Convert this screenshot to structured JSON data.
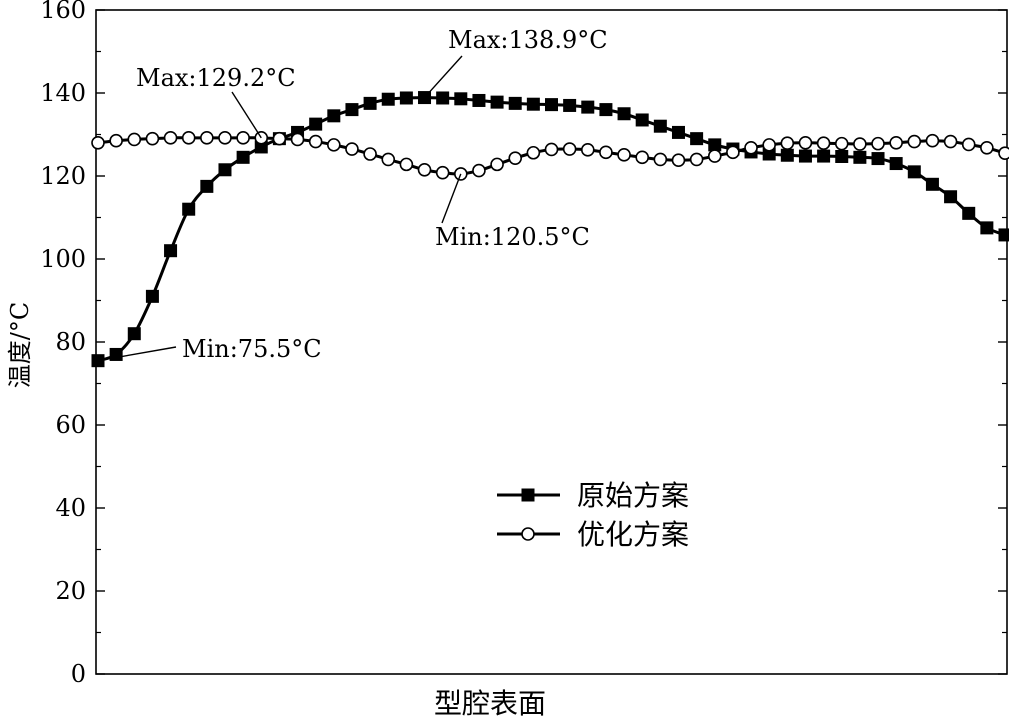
{
  "chart_data": {
    "type": "line",
    "title": "",
    "xlabel": "型腔表面",
    "ylabel": "温度/°C",
    "ylim": [
      0,
      160
    ],
    "yticks": [
      0,
      20,
      40,
      60,
      80,
      100,
      120,
      140,
      160
    ],
    "grid": false,
    "legend_position": "center-right",
    "series": [
      {
        "name": "原始方案",
        "marker": "square",
        "color": "#000000",
        "values": [
          75.5,
          77.0,
          82.0,
          91.0,
          102.0,
          112.0,
          117.5,
          121.5,
          124.5,
          127.0,
          129.0,
          130.5,
          132.5,
          134.5,
          136.0,
          137.5,
          138.5,
          138.8,
          138.9,
          138.8,
          138.6,
          138.2,
          137.8,
          137.5,
          137.3,
          137.2,
          137.0,
          136.6,
          136.0,
          135.0,
          133.5,
          132.0,
          130.5,
          129.0,
          127.5,
          126.5,
          125.8,
          125.3,
          125.0,
          124.8,
          124.8,
          124.7,
          124.5,
          124.2,
          123.0,
          121.0,
          118.0,
          115.0,
          111.0,
          107.5,
          105.8
        ],
        "annotations": [
          {
            "text": "Min:75.5°C",
            "x_index": 0,
            "value": 75.5
          },
          {
            "text": "Max:138.9°C",
            "x_index": 18,
            "value": 138.9
          }
        ]
      },
      {
        "name": "优化方案",
        "marker": "circle",
        "color": "#000000",
        "values": [
          128.0,
          128.5,
          128.8,
          129.0,
          129.2,
          129.2,
          129.2,
          129.2,
          129.2,
          129.2,
          129.0,
          128.8,
          128.3,
          127.5,
          126.5,
          125.3,
          124.0,
          122.8,
          121.5,
          120.8,
          120.5,
          121.3,
          122.8,
          124.3,
          125.6,
          126.4,
          126.5,
          126.3,
          125.7,
          125.1,
          124.5,
          124.0,
          123.8,
          124.0,
          124.8,
          125.7,
          126.8,
          127.5,
          127.9,
          128.0,
          127.9,
          127.8,
          127.7,
          127.8,
          128.0,
          128.3,
          128.5,
          128.3,
          127.6,
          126.8,
          125.5
        ],
        "annotations": [
          {
            "text": "Max:129.2°C",
            "x_index": 9,
            "value": 129.2
          },
          {
            "text": "Min:120.5°C",
            "x_index": 20,
            "value": 120.5
          }
        ]
      }
    ]
  }
}
